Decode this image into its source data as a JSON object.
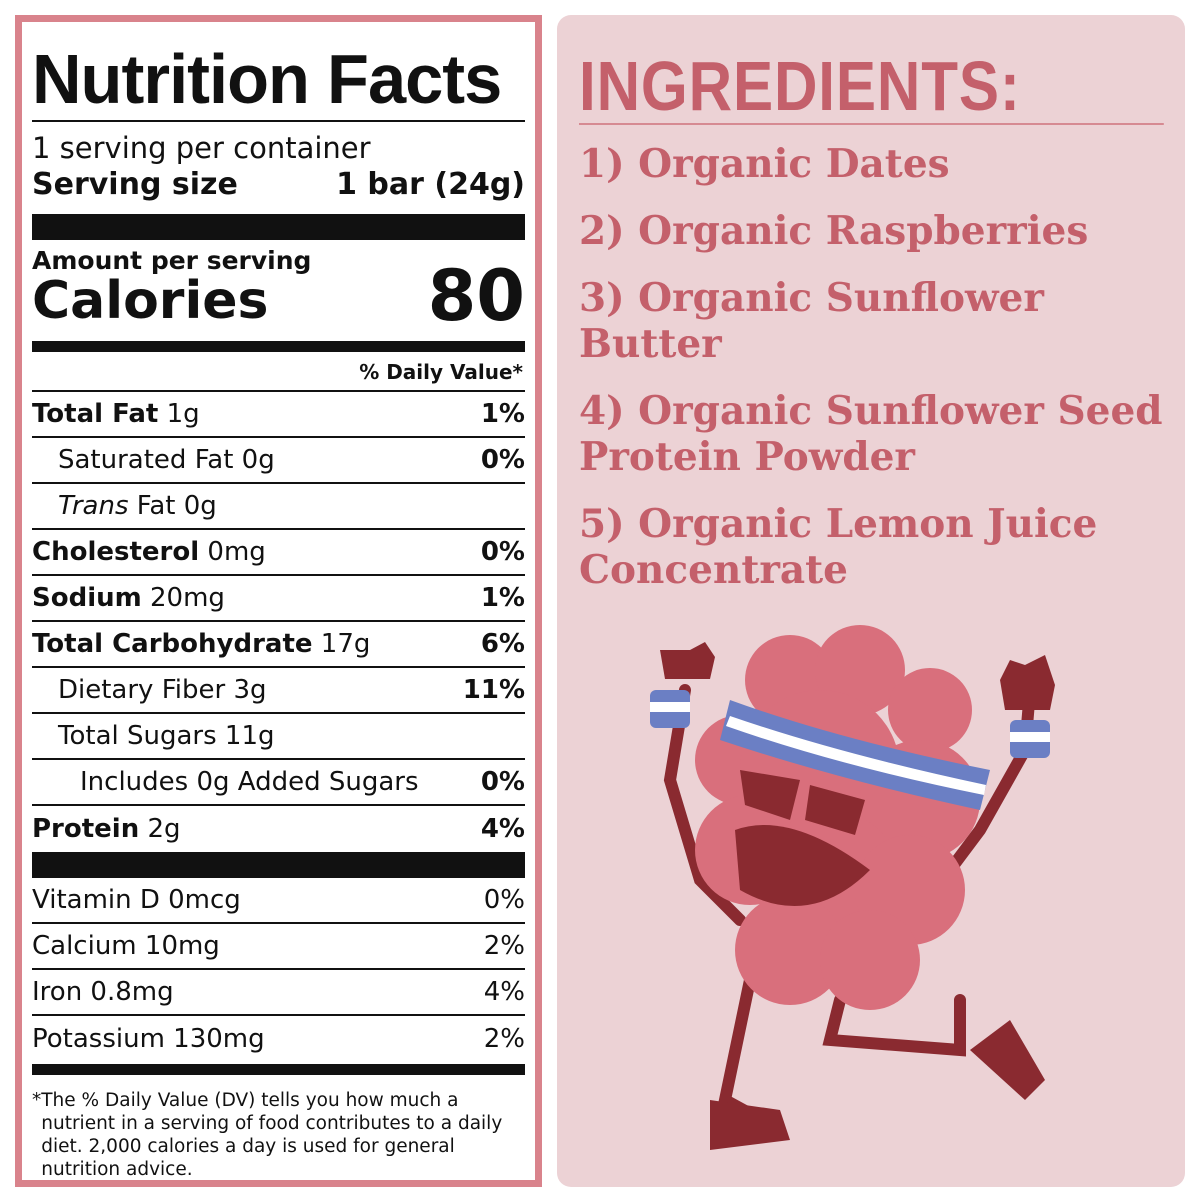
{
  "nutrition": {
    "title": "Nutrition Facts",
    "servings_per_container": "1 serving per container",
    "serving_size_label": "Serving size",
    "serving_size_value": "1 bar (24g)",
    "amount_per_serving": "Amount per serving",
    "calories_label": "Calories",
    "calories_value": "80",
    "daily_value_header": "% Daily Value*",
    "nutrients": [
      {
        "name": "Total Fat",
        "amount": "1g",
        "dv": "1%"
      },
      {
        "name": "Saturated Fat",
        "amount": "0g",
        "dv": "0%"
      },
      {
        "name": "Trans",
        "name_rest": "Fat",
        "amount": "0g",
        "dv": ""
      },
      {
        "name": "Cholesterol",
        "amount": "0mg",
        "dv": "0%"
      },
      {
        "name": "Sodium",
        "amount": "20mg",
        "dv": "1%"
      },
      {
        "name": "Total Carbohydrate",
        "amount": "17g",
        "dv": "6%"
      },
      {
        "name": "Dietary Fiber",
        "amount": "3g",
        "dv": "11%"
      },
      {
        "name": "Total Sugars",
        "amount": "11g",
        "dv": ""
      },
      {
        "name": "Includes 0g Added Sugars",
        "amount": "",
        "dv": "0%"
      },
      {
        "name": "Protein",
        "amount": "2g",
        "dv": "4%"
      }
    ],
    "vitamins": [
      {
        "name": "Vitamin D 0mcg",
        "dv": "0%"
      },
      {
        "name": "Calcium 10mg",
        "dv": "2%"
      },
      {
        "name": "Iron 0.8mg",
        "dv": "4%"
      },
      {
        "name": "Potassium 130mg",
        "dv": "2%"
      }
    ],
    "footnote_star": "*",
    "footnote": "The % Daily Value (DV) tells you how much a nutrient in a serving of food contributes to a daily diet. 2,000 calories a day is used for general nutrition advice."
  },
  "ingredients": {
    "title": "INGREDIENTS:",
    "items": [
      "1) Organic Dates",
      "2) Organic Raspberries",
      "3) Organic Sunflower Butter",
      "4) Organic Sunflower Seed Protein Powder",
      "5) Organic Lemon Juice Concentrate"
    ]
  },
  "colors": {
    "border": "#d9838c",
    "panel_bg": "#ecd2d5",
    "heading": "#c4606b",
    "mascot_body": "#d96f7c",
    "mascot_dark": "#8a2a30",
    "headband_blue": "#6b7fc4"
  },
  "mascot_icon": "raspberry-mascot-illustration"
}
